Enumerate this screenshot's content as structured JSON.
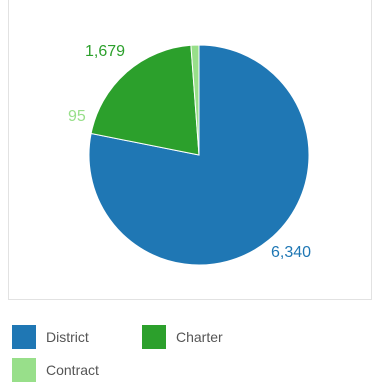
{
  "chart_data": {
    "type": "pie",
    "title": "",
    "slices": [
      {
        "name": "District",
        "value": 6340,
        "label": "6,340",
        "color": "#1f77b4"
      },
      {
        "name": "Charter",
        "value": 1679,
        "label": "1,679",
        "color": "#2ca02c"
      },
      {
        "name": "Contract",
        "value": 95,
        "label": "95",
        "color": "#98df8a"
      }
    ],
    "legend": {
      "position": "bottom-left",
      "items": [
        "District",
        "Charter",
        "Contract"
      ]
    }
  }
}
